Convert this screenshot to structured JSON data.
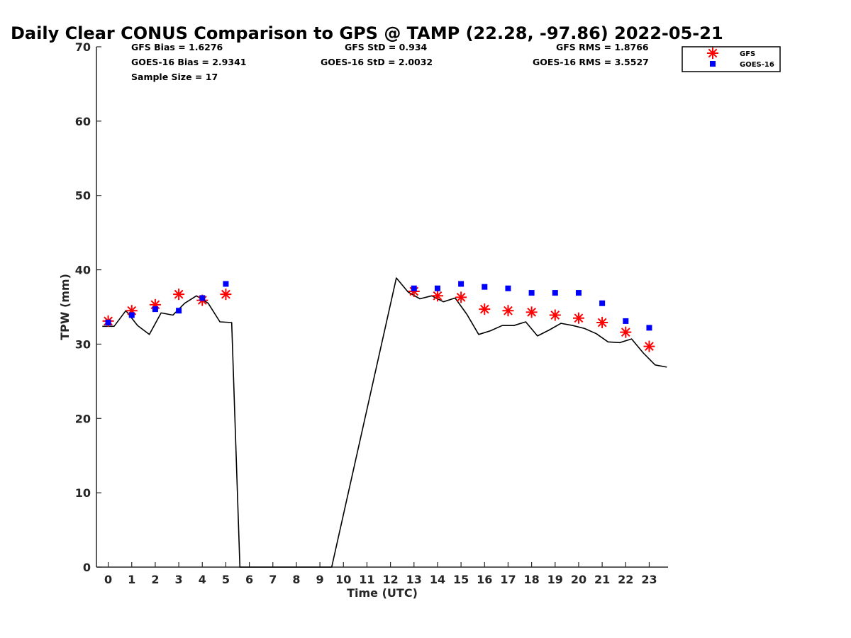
{
  "chart_data": {
    "type": "line",
    "title": "Daily Clear CONUS Comparison to GPS @ TAMP (22.28, -97.86) 2022-05-21",
    "xlabel": "Time (UTC)",
    "ylabel": "TPW (mm)",
    "xlim": [
      -0.5,
      23.8
    ],
    "ylim": [
      0,
      70
    ],
    "xticks": [
      0,
      1,
      2,
      3,
      4,
      5,
      6,
      7,
      8,
      9,
      10,
      11,
      12,
      13,
      14,
      15,
      16,
      17,
      18,
      19,
      20,
      21,
      22,
      23
    ],
    "yticks": [
      0,
      10,
      20,
      30,
      40,
      50,
      60,
      70
    ],
    "grid": false,
    "legend_position": "top-right, outside plot",
    "stats": {
      "gfs_bias": "GFS Bias = 1.6276",
      "goes_bias": "GOES-16 Bias = 2.9341",
      "sample_size": "Sample Size = 17",
      "gfs_std": "GFS StD = 0.934",
      "goes_std": "GOES-16 StD = 2.0032",
      "gfs_rms": "GFS RMS = 1.8766",
      "goes_rms": "GOES-16 RMS = 3.5527"
    },
    "series": [
      {
        "role": "gps",
        "style": "line",
        "color": "#000000",
        "x": [
          -0.25,
          0.25,
          0.75,
          1.25,
          1.75,
          2.25,
          2.75,
          3.25,
          3.75,
          4.25,
          4.75,
          5.25,
          5.6,
          9.5,
          12.25,
          12.75,
          13.25,
          13.75,
          14.25,
          14.75,
          15.25,
          15.75,
          16.25,
          16.75,
          17.25,
          17.75,
          18.25,
          18.75,
          19.25,
          19.75,
          20.25,
          20.75,
          21.25,
          21.75,
          22.25,
          22.75,
          23.25,
          23.75
        ],
        "y": [
          32.4,
          32.4,
          34.5,
          32.5,
          31.3,
          34.2,
          33.9,
          35.5,
          36.5,
          35.5,
          33.0,
          32.9,
          0,
          0,
          38.9,
          37.0,
          36.1,
          36.5,
          35.7,
          36.2,
          34.0,
          31.3,
          31.8,
          32.5,
          32.5,
          33.0,
          31.1,
          31.9,
          32.8,
          32.5,
          32.1,
          31.4,
          30.3,
          30.2,
          30.7,
          28.8,
          27.2,
          26.9
        ]
      },
      {
        "name": "GFS",
        "style": "asterisk",
        "color": "#ff0000",
        "x": [
          0,
          1,
          2,
          3,
          4,
          5,
          13,
          14,
          15,
          16,
          17,
          18,
          19,
          20,
          21,
          22,
          23
        ],
        "y": [
          33.1,
          34.5,
          35.3,
          36.7,
          35.9,
          36.7,
          37.1,
          36.5,
          36.3,
          34.7,
          34.5,
          34.3,
          33.9,
          33.5,
          32.9,
          31.6,
          29.7
        ]
      },
      {
        "name": "GOES-16",
        "style": "square",
        "color": "#0000ff",
        "x": [
          0,
          1,
          2,
          3,
          4,
          5,
          13,
          14,
          15,
          16,
          17,
          18,
          19,
          20,
          21,
          22,
          23
        ],
        "y": [
          32.9,
          33.9,
          34.7,
          34.5,
          36.2,
          38.1,
          37.5,
          37.5,
          38.1,
          37.7,
          37.5,
          36.9,
          36.9,
          36.9,
          35.5,
          33.1,
          32.2
        ]
      }
    ],
    "legend": [
      "GFS",
      "GOES-16"
    ]
  }
}
